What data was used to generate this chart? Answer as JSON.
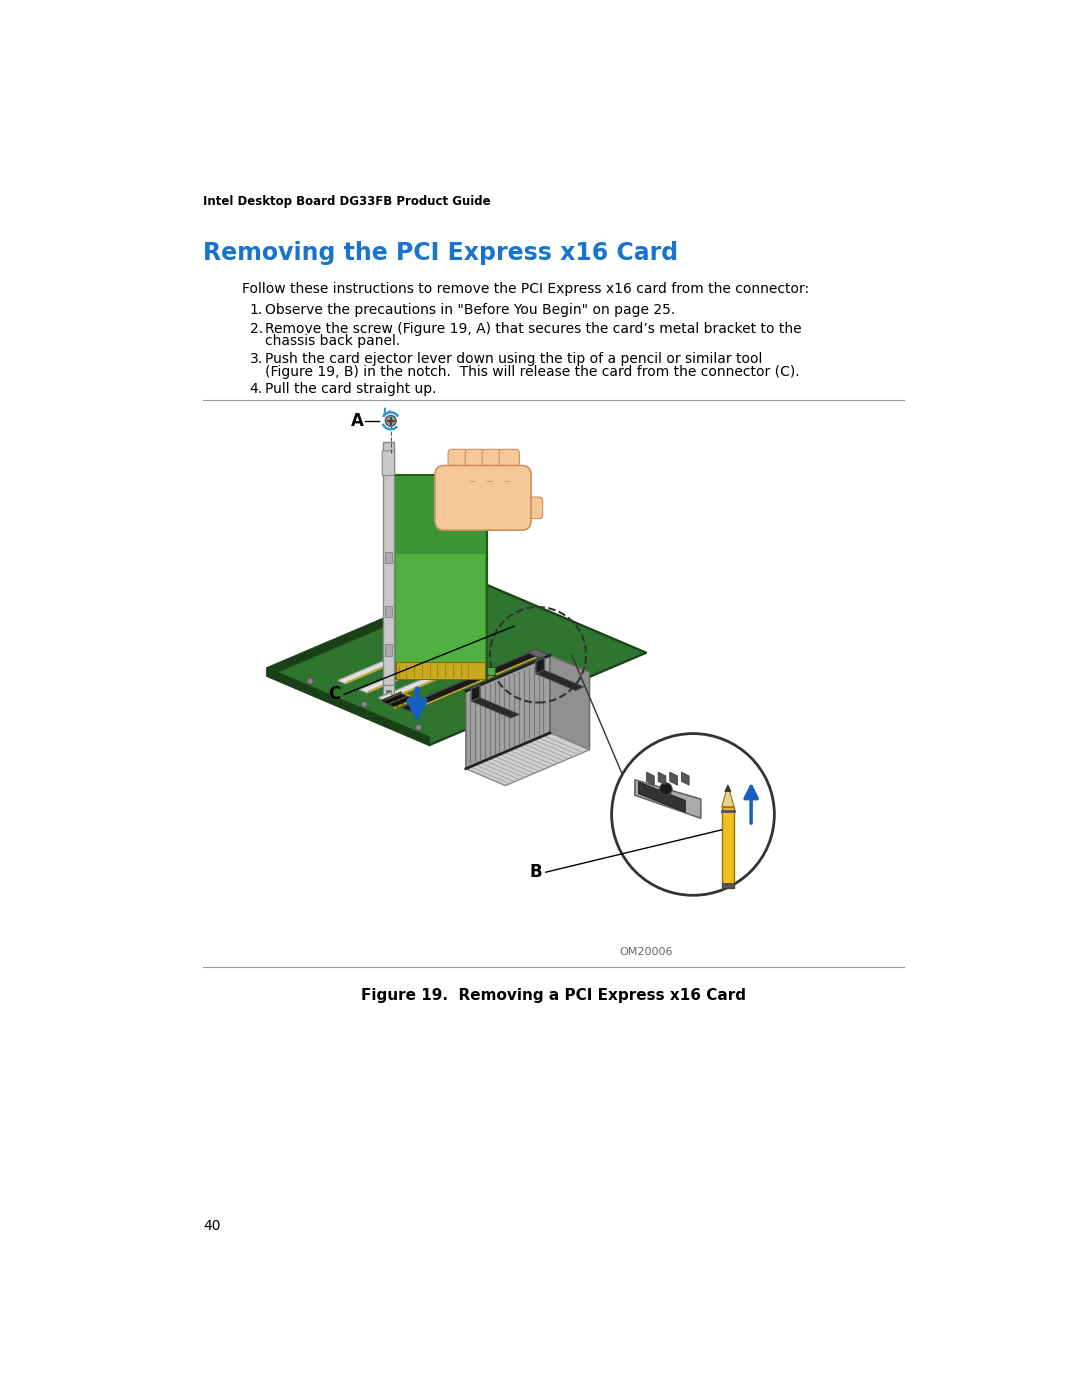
{
  "page_header": "Intel Desktop Board DG33FB Product Guide",
  "section_title": "Removing the PCI Express x16 Card",
  "title_color": "#1874CD",
  "intro_text": "Follow these instructions to remove the PCI Express x16 card from the connector:",
  "step1": "Observe the precautions in \"Before You Begin\" on page 25.",
  "step2a": "Remove the screw (Figure 19, A) that secures the card’s metal bracket to the",
  "step2b": "chassis back panel.",
  "step3a": "Push the card ejector lever down using the tip of a pencil or similar tool",
  "step3b": "(Figure 19, B) in the notch.  This will release the card from the connector (C).",
  "step4": "Pull the card straight up.",
  "figure_caption": "Figure 19.  Removing a PCI Express x16 Card",
  "watermark": "OM20006",
  "page_number": "40",
  "background_color": "#ffffff",
  "text_color": "#000000",
  "header_fontsize": 8.5,
  "title_fontsize": 17,
  "body_fontsize": 10,
  "caption_fontsize": 11,
  "page_num_fontsize": 10,
  "board_color": "#2d6b28",
  "board_edge_color": "#1a4018",
  "card_color": "#3d9435",
  "card_edge_color": "#1f5c18",
  "heatsink_color": "#c0c0c0",
  "heatsink_dark": "#888888",
  "slot_color": "#1a1a1a",
  "bracket_color": "#c8c8c8",
  "gold_color": "#c8a820",
  "pencil_body_color": "#f0c020",
  "pencil_tip_color": "#e8d098",
  "hand_color": "#f5c898",
  "hand_edge_color": "#d09060",
  "arrow_color": "#1560c0",
  "label_line_color": "#000000",
  "circle_color": "#333333",
  "blue_arc_color": "#3399cc"
}
